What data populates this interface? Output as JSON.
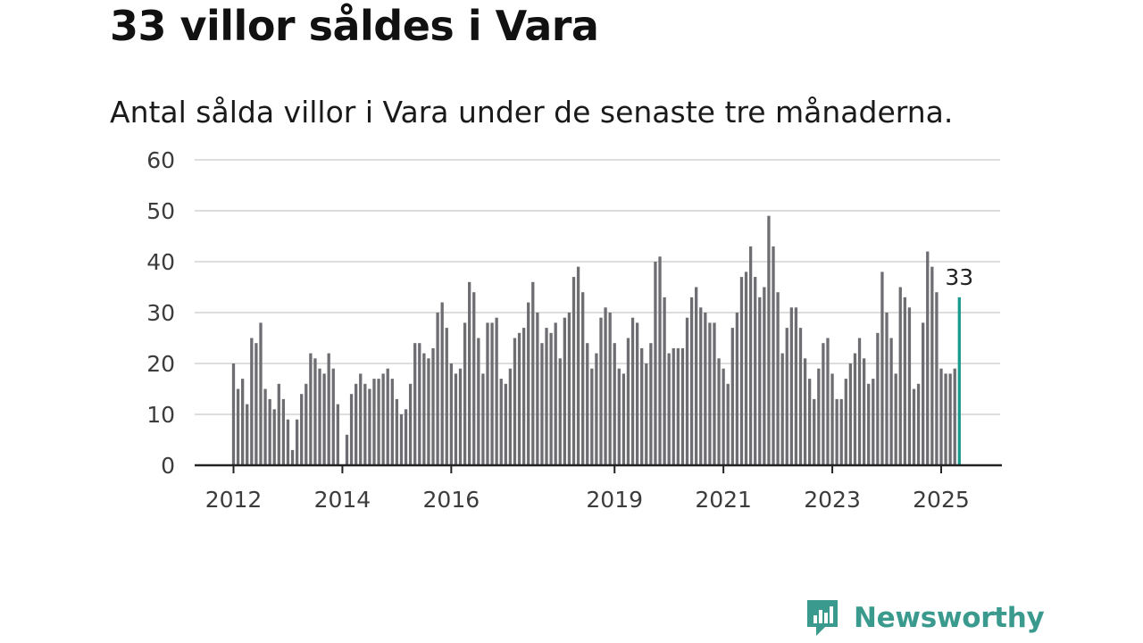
{
  "header": {
    "title": "33 villor såldes i Vara",
    "subtitle": "Antal sålda villor i Vara under de senaste tre månaderna."
  },
  "brand": {
    "name": "Newsworthy"
  },
  "colors": {
    "bar": "#6d6d72",
    "highlight": "#1a9a8e",
    "grid": "#dddddd",
    "axis": "#222222",
    "brand": "#3a9a8d"
  },
  "chart_data": {
    "type": "bar",
    "title": "33 villor såldes i Vara",
    "subtitle": "Antal sålda villor i Vara under de senaste tre månaderna.",
    "xlabel": "",
    "ylabel": "",
    "ylim": [
      0,
      60
    ],
    "yticks": [
      0,
      10,
      20,
      30,
      40,
      50,
      60
    ],
    "xticks": [
      {
        "label": "2012",
        "index": 0
      },
      {
        "label": "2014",
        "index": 24
      },
      {
        "label": "2016",
        "index": 48
      },
      {
        "label": "2019",
        "index": 84
      },
      {
        "label": "2021",
        "index": 108
      },
      {
        "label": "2023",
        "index": 132
      },
      {
        "label": "2025",
        "index": 156
      }
    ],
    "grid": true,
    "values": [
      20,
      15,
      17,
      12,
      25,
      24,
      28,
      15,
      13,
      11,
      16,
      13,
      9,
      3,
      9,
      14,
      16,
      22,
      21,
      19,
      18,
      22,
      19,
      12,
      0,
      6,
      14,
      16,
      18,
      16,
      15,
      17,
      17,
      18,
      19,
      17,
      13,
      10,
      11,
      16,
      24,
      24,
      22,
      21,
      23,
      30,
      32,
      27,
      20,
      18,
      19,
      28,
      36,
      34,
      25,
      18,
      28,
      28,
      29,
      17,
      16,
      19,
      25,
      26,
      27,
      32,
      36,
      30,
      24,
      27,
      26,
      28,
      21,
      29,
      30,
      37,
      39,
      34,
      24,
      19,
      22,
      29,
      31,
      30,
      24,
      19,
      18,
      25,
      29,
      28,
      23,
      20,
      24,
      40,
      41,
      33,
      22,
      23,
      23,
      23,
      29,
      33,
      35,
      31,
      30,
      28,
      28,
      21,
      19,
      16,
      27,
      30,
      37,
      38,
      43,
      37,
      33,
      35,
      49,
      43,
      34,
      22,
      27,
      31,
      31,
      27,
      21,
      17,
      13,
      19,
      24,
      25,
      18,
      13,
      13,
      17,
      20,
      22,
      25,
      21,
      16,
      17,
      26,
      38,
      30,
      25,
      18,
      35,
      33,
      31,
      15,
      16,
      28,
      42,
      39,
      34,
      19,
      18,
      18,
      19,
      33
    ],
    "highlight_index": 160,
    "highlight_label": "33"
  }
}
